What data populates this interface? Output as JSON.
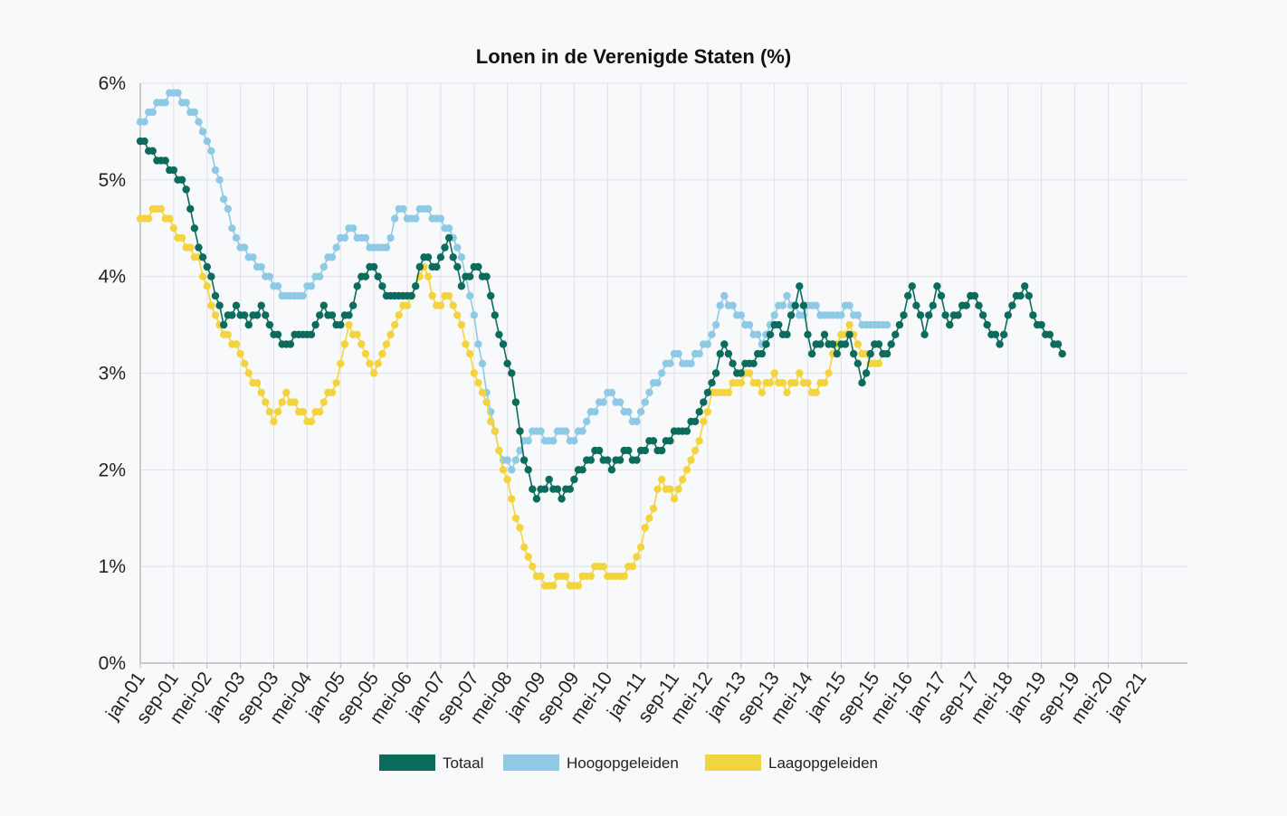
{
  "chart_data": {
    "type": "line",
    "title": "Lonen in de Verenigde Staten (%)",
    "xlabel": "",
    "ylabel": "",
    "ylim": [
      0,
      6
    ],
    "y_ticks": [
      "0%",
      "1%",
      "2%",
      "3%",
      "4%",
      "5%",
      "6%"
    ],
    "x_range": [
      "2001-01",
      "2021-12"
    ],
    "x_tick_labels": [
      "jan-01",
      "sep-01",
      "mei-02",
      "jan-03",
      "sep-03",
      "mei-04",
      "jan-05",
      "sep-05",
      "mei-06",
      "jan-07",
      "sep-07",
      "mei-08",
      "jan-09",
      "sep-09",
      "mei-10",
      "jan-11",
      "sep-11",
      "mei-12",
      "jan-13",
      "sep-13",
      "mei-14",
      "jan-15",
      "sep-15",
      "mei-16",
      "jan-17",
      "sep-17",
      "mei-18",
      "jan-19",
      "sep-19",
      "mei-20",
      "jan-21"
    ],
    "grid": true,
    "legend_position": "bottom",
    "series": [
      {
        "name": "Totaal",
        "color": "#0b6b5c",
        "points": [
          [
            "2001-01",
            5.4
          ],
          [
            "2001-06",
            5.2
          ],
          [
            "2001-09",
            5.1
          ],
          [
            "2001-12",
            4.9
          ],
          [
            "2002-03",
            4.3
          ],
          [
            "2002-06",
            4.0
          ],
          [
            "2002-09",
            3.5
          ],
          [
            "2002-12",
            3.7
          ],
          [
            "2003-03",
            3.5
          ],
          [
            "2003-06",
            3.7
          ],
          [
            "2003-09",
            3.4
          ],
          [
            "2003-12",
            3.3
          ],
          [
            "2004-03",
            3.4
          ],
          [
            "2004-06",
            3.4
          ],
          [
            "2004-09",
            3.7
          ],
          [
            "2004-12",
            3.5
          ],
          [
            "2005-03",
            3.6
          ],
          [
            "2005-06",
            4.0
          ],
          [
            "2005-09",
            4.1
          ],
          [
            "2005-12",
            3.8
          ],
          [
            "2006-03",
            3.8
          ],
          [
            "2006-06",
            3.8
          ],
          [
            "2006-09",
            4.2
          ],
          [
            "2006-12",
            4.1
          ],
          [
            "2007-03",
            4.4
          ],
          [
            "2007-06",
            3.9
          ],
          [
            "2007-09",
            4.1
          ],
          [
            "2007-12",
            4.0
          ],
          [
            "2008-03",
            3.4
          ],
          [
            "2008-06",
            3.0
          ],
          [
            "2008-09",
            2.1
          ],
          [
            "2008-12",
            1.7
          ],
          [
            "2009-03",
            1.9
          ],
          [
            "2009-06",
            1.7
          ],
          [
            "2009-09",
            1.9
          ],
          [
            "2009-12",
            2.1
          ],
          [
            "2010-03",
            2.2
          ],
          [
            "2010-06",
            2.0
          ],
          [
            "2010-09",
            2.2
          ],
          [
            "2010-12",
            2.1
          ],
          [
            "2011-03",
            2.3
          ],
          [
            "2011-06",
            2.2
          ],
          [
            "2011-09",
            2.4
          ],
          [
            "2011-12",
            2.4
          ],
          [
            "2012-03",
            2.6
          ],
          [
            "2012-06",
            2.9
          ],
          [
            "2012-09",
            3.3
          ],
          [
            "2012-12",
            3.0
          ],
          [
            "2013-03",
            3.1
          ],
          [
            "2013-06",
            3.2
          ],
          [
            "2013-09",
            3.5
          ],
          [
            "2013-12",
            3.4
          ],
          [
            "2014-03",
            3.9
          ],
          [
            "2014-06",
            3.2
          ],
          [
            "2014-09",
            3.4
          ],
          [
            "2014-12",
            3.2
          ],
          [
            "2015-03",
            3.4
          ],
          [
            "2015-06",
            2.9
          ],
          [
            "2015-09",
            3.3
          ],
          [
            "2015-12",
            3.2
          ],
          [
            "2016-03",
            3.5
          ],
          [
            "2016-06",
            3.9
          ],
          [
            "2016-09",
            3.4
          ],
          [
            "2016-12",
            3.9
          ],
          [
            "2017-03",
            3.5
          ],
          [
            "2017-06",
            3.7
          ],
          [
            "2017-09",
            3.8
          ],
          [
            "2017-12",
            3.5
          ],
          [
            "2018-03",
            3.3
          ],
          [
            "2018-06",
            3.7
          ],
          [
            "2018-09",
            3.9
          ],
          [
            "2018-12",
            3.5
          ],
          [
            "2019-03",
            3.4
          ],
          [
            "2019-06",
            3.2
          ]
        ]
      },
      {
        "name": "Hoogopgeleiden",
        "color": "#8ecae6",
        "points": [
          [
            "2001-01",
            5.6
          ],
          [
            "2001-06",
            5.8
          ],
          [
            "2001-09",
            5.9
          ],
          [
            "2001-12",
            5.8
          ],
          [
            "2002-03",
            5.6
          ],
          [
            "2002-06",
            5.3
          ],
          [
            "2002-09",
            4.8
          ],
          [
            "2002-12",
            4.4
          ],
          [
            "2003-03",
            4.2
          ],
          [
            "2003-06",
            4.1
          ],
          [
            "2003-09",
            3.9
          ],
          [
            "2003-12",
            3.8
          ],
          [
            "2004-03",
            3.8
          ],
          [
            "2004-06",
            3.9
          ],
          [
            "2004-09",
            4.1
          ],
          [
            "2004-12",
            4.3
          ],
          [
            "2005-03",
            4.5
          ],
          [
            "2005-06",
            4.4
          ],
          [
            "2005-09",
            4.3
          ],
          [
            "2005-12",
            4.3
          ],
          [
            "2006-03",
            4.7
          ],
          [
            "2006-06",
            4.6
          ],
          [
            "2006-09",
            4.7
          ],
          [
            "2006-12",
            4.6
          ],
          [
            "2007-03",
            4.5
          ],
          [
            "2007-06",
            4.2
          ],
          [
            "2007-09",
            3.6
          ],
          [
            "2007-12",
            2.8
          ],
          [
            "2008-03",
            2.2
          ],
          [
            "2008-06",
            2.0
          ],
          [
            "2008-09",
            2.3
          ],
          [
            "2008-12",
            2.4
          ],
          [
            "2009-03",
            2.3
          ],
          [
            "2009-06",
            2.4
          ],
          [
            "2009-09",
            2.3
          ],
          [
            "2009-12",
            2.5
          ],
          [
            "2010-03",
            2.7
          ],
          [
            "2010-06",
            2.8
          ],
          [
            "2010-09",
            2.6
          ],
          [
            "2010-12",
            2.5
          ],
          [
            "2011-03",
            2.8
          ],
          [
            "2011-06",
            3.0
          ],
          [
            "2011-09",
            3.2
          ],
          [
            "2011-12",
            3.1
          ],
          [
            "2012-03",
            3.2
          ],
          [
            "2012-06",
            3.4
          ],
          [
            "2012-09",
            3.8
          ],
          [
            "2012-12",
            3.6
          ],
          [
            "2013-03",
            3.5
          ],
          [
            "2013-06",
            3.3
          ],
          [
            "2013-09",
            3.6
          ],
          [
            "2013-12",
            3.8
          ],
          [
            "2014-03",
            3.6
          ],
          [
            "2014-06",
            3.7
          ],
          [
            "2014-09",
            3.6
          ],
          [
            "2014-12",
            3.6
          ],
          [
            "2015-03",
            3.7
          ],
          [
            "2015-06",
            3.5
          ],
          [
            "2015-09",
            3.5
          ],
          [
            "2015-12",
            3.5
          ]
        ]
      },
      {
        "name": "Laagopgeleiden",
        "color": "#f4d43e",
        "points": [
          [
            "2001-01",
            4.6
          ],
          [
            "2001-06",
            4.7
          ],
          [
            "2001-09",
            4.5
          ],
          [
            "2001-12",
            4.3
          ],
          [
            "2002-03",
            4.2
          ],
          [
            "2002-06",
            3.7
          ],
          [
            "2002-09",
            3.4
          ],
          [
            "2002-12",
            3.3
          ],
          [
            "2003-03",
            3.0
          ],
          [
            "2003-06",
            2.8
          ],
          [
            "2003-09",
            2.5
          ],
          [
            "2003-12",
            2.8
          ],
          [
            "2004-03",
            2.6
          ],
          [
            "2004-06",
            2.5
          ],
          [
            "2004-09",
            2.7
          ],
          [
            "2004-12",
            2.9
          ],
          [
            "2005-03",
            3.5
          ],
          [
            "2005-06",
            3.3
          ],
          [
            "2005-09",
            3.0
          ],
          [
            "2005-12",
            3.3
          ],
          [
            "2006-03",
            3.6
          ],
          [
            "2006-06",
            3.8
          ],
          [
            "2006-09",
            4.1
          ],
          [
            "2006-12",
            3.7
          ],
          [
            "2007-03",
            3.8
          ],
          [
            "2007-06",
            3.5
          ],
          [
            "2007-09",
            3.0
          ],
          [
            "2007-12",
            2.7
          ],
          [
            "2008-03",
            2.2
          ],
          [
            "2008-06",
            1.7
          ],
          [
            "2008-09",
            1.2
          ],
          [
            "2008-12",
            0.9
          ],
          [
            "2009-03",
            0.8
          ],
          [
            "2009-06",
            0.9
          ],
          [
            "2009-09",
            0.8
          ],
          [
            "2009-12",
            0.9
          ],
          [
            "2010-03",
            1.0
          ],
          [
            "2010-06",
            0.9
          ],
          [
            "2010-09",
            0.9
          ],
          [
            "2010-12",
            1.1
          ],
          [
            "2011-03",
            1.5
          ],
          [
            "2011-06",
            1.9
          ],
          [
            "2011-09",
            1.7
          ],
          [
            "2011-12",
            2.0
          ],
          [
            "2012-03",
            2.3
          ],
          [
            "2012-06",
            2.8
          ],
          [
            "2012-09",
            2.8
          ],
          [
            "2012-12",
            2.9
          ],
          [
            "2013-03",
            3.0
          ],
          [
            "2013-06",
            2.8
          ],
          [
            "2013-09",
            3.0
          ],
          [
            "2013-12",
            2.8
          ],
          [
            "2014-03",
            3.0
          ],
          [
            "2014-06",
            2.8
          ],
          [
            "2014-09",
            2.9
          ],
          [
            "2014-12",
            3.3
          ],
          [
            "2015-03",
            3.5
          ],
          [
            "2015-06",
            3.2
          ],
          [
            "2015-09",
            3.1
          ],
          [
            "2015-12",
            3.2
          ]
        ]
      }
    ]
  }
}
